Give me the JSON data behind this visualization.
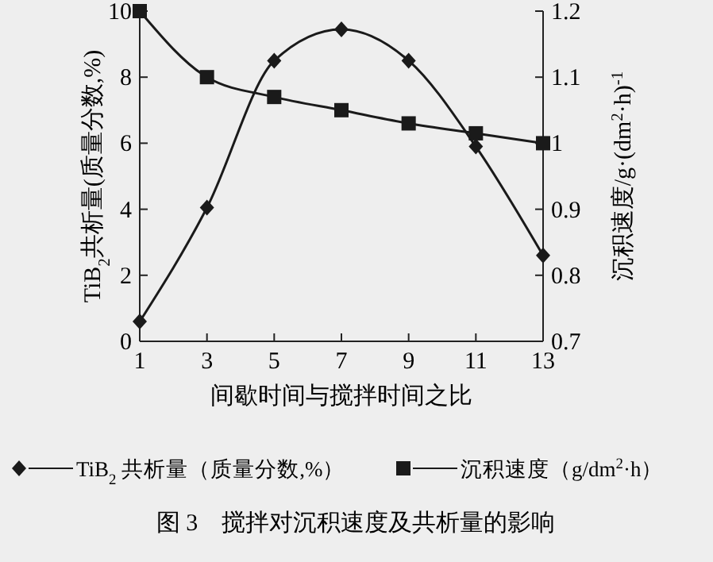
{
  "chart_data": {
    "type": "line",
    "xlabel": "间歇时间与搅拌时间之比",
    "ylabel": "TiB$_{2}$共析量(质量分数,%)",
    "y2label": "沉积速度/g·(dm$^{2}$·h)$^{-1}$",
    "x": [
      1,
      3,
      5,
      7,
      9,
      11,
      13
    ],
    "xlim": [
      1,
      13
    ],
    "xticks": [
      1,
      3,
      5,
      7,
      9,
      11,
      13
    ],
    "ylim": [
      0,
      10
    ],
    "yticks": [
      0,
      2,
      4,
      6,
      8,
      10
    ],
    "y2lim": [
      0.7,
      1.2
    ],
    "y2ticks": [
      0.7,
      0.8,
      0.9,
      1,
      1.1,
      1.2
    ],
    "series": [
      {
        "name": "TiB$_{2}$ 共析量（质量分数,%）",
        "color": "#1a1a1a",
        "marker": "diamond",
        "values": [
          0.6,
          4.05,
          8.5,
          9.45,
          8.5,
          5.9,
          2.6
        ]
      },
      {
        "name": "沉积速度（g/dm$^{2}$·h）",
        "color": "#1a1a1a",
        "marker": "square",
        "axis": "y2",
        "values": [
          1.2,
          1.1,
          1.07,
          1.05,
          1.03,
          1.015,
          1.0
        ]
      }
    ],
    "legend": "bottom",
    "grid": false,
    "line_style": "solid",
    "annotations": [
      "图 3　搅拌对沉积速度及共析量的影响"
    ]
  }
}
